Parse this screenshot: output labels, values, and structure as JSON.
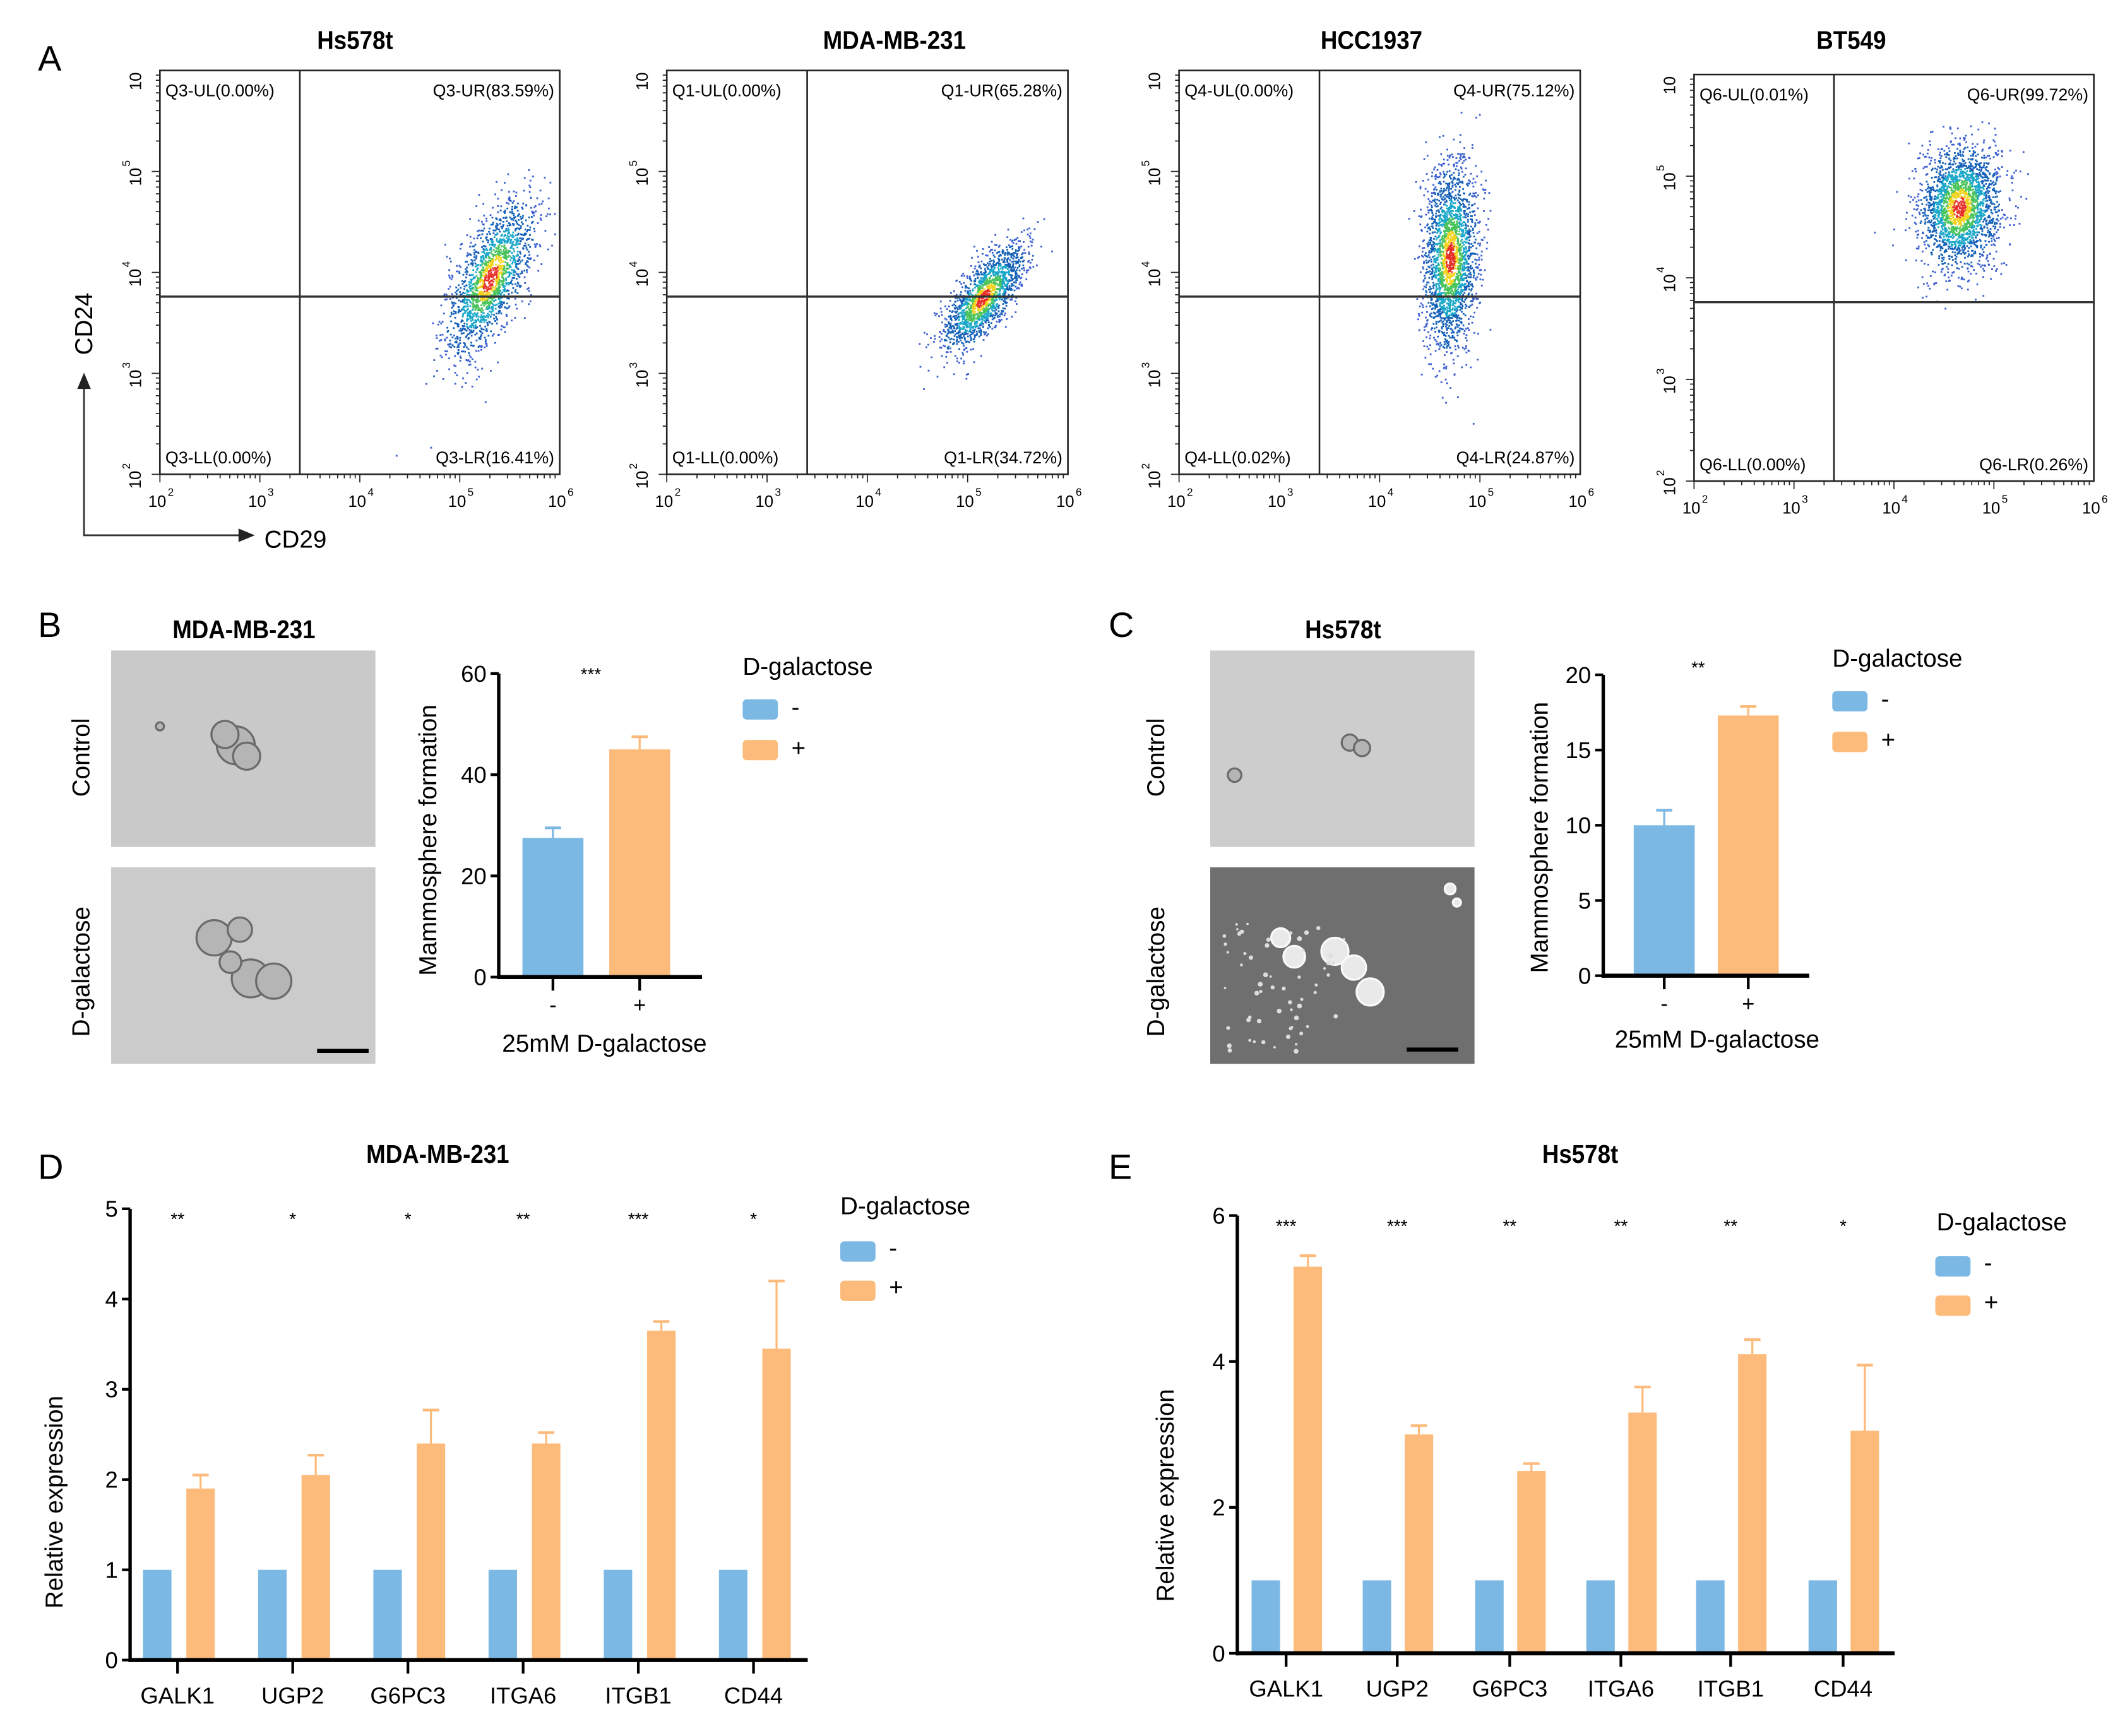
{
  "colors": {
    "minus": "#7cb8e4",
    "plus": "#fdbb7b",
    "axis": "#000000"
  },
  "panelA": {
    "label": "A",
    "y_axis_label": "CD24",
    "x_axis_label": "CD29",
    "tick_labels": [
      "10",
      "2",
      "10",
      "3",
      "10",
      "4",
      "10",
      "5",
      "10",
      "6"
    ]
  },
  "chart_data": [
    {
      "type": "scatter",
      "panel": "A",
      "title": "Hs578t",
      "xlabel": "CD29",
      "ylabel": "CD24",
      "xscale": "log",
      "yscale": "log",
      "xlim": [
        100,
        1000000
      ],
      "ylim": [
        100,
        1000000
      ],
      "quadrants": {
        "UL": "Q3-UL(0.00%)",
        "UR": "Q3-UR(83.59%)",
        "LL": "Q3-LL(0.00%)",
        "LR": "Q3-LR(16.41%)"
      }
    },
    {
      "type": "scatter",
      "panel": "A",
      "title": "MDA-MB-231",
      "xlabel": "CD29",
      "ylabel": "CD24",
      "xscale": "log",
      "yscale": "log",
      "xlim": [
        100,
        1000000
      ],
      "ylim": [
        100,
        1000000
      ],
      "quadrants": {
        "UL": "Q1-UL(0.00%)",
        "UR": "Q1-UR(65.28%)",
        "LL": "Q1-LL(0.00%)",
        "LR": "Q1-LR(34.72%)"
      }
    },
    {
      "type": "scatter",
      "panel": "A",
      "title": "HCC1937",
      "xlabel": "CD29",
      "ylabel": "CD24",
      "xscale": "log",
      "yscale": "log",
      "xlim": [
        100,
        1000000
      ],
      "ylim": [
        100,
        1000000
      ],
      "quadrants": {
        "UL": "Q4-UL(0.00%)",
        "UR": "Q4-UR(75.12%)",
        "LL": "Q4-LL(0.02%)",
        "LR": "Q4-LR(24.87%)"
      }
    },
    {
      "type": "scatter",
      "panel": "A",
      "title": "BT549",
      "xlabel": "CD29",
      "ylabel": "CD24",
      "xscale": "log",
      "yscale": "log",
      "xlim": [
        100,
        1000000
      ],
      "ylim": [
        100,
        1000000
      ],
      "quadrants": {
        "UL": "Q6-UL(0.01%)",
        "UR": "Q6-UR(99.72%)",
        "LL": "Q6-LL(0.00%)",
        "LR": "Q6-LR(0.26%)"
      }
    },
    {
      "type": "bar",
      "panel": "B",
      "title": "MDA-MB-231",
      "ylabel": "Mammosphere formation",
      "xlabel": "25mM D-galactose",
      "categories": [
        "-",
        "+"
      ],
      "values": [
        27.5,
        45
      ],
      "errors": [
        2,
        2.5
      ],
      "ylim": [
        0,
        60
      ],
      "yticks": [
        0,
        20,
        40,
        60
      ],
      "significance": "***",
      "legend": {
        "title": "D-galactose",
        "entries": [
          "-",
          "+"
        ]
      }
    },
    {
      "type": "bar",
      "panel": "C",
      "title": "Hs578t",
      "ylabel": "Mammosphere formation",
      "xlabel": "25mM D-galactose",
      "categories": [
        "-",
        "+"
      ],
      "values": [
        10,
        17.3
      ],
      "errors": [
        1,
        0.6
      ],
      "ylim": [
        0,
        20
      ],
      "yticks": [
        0,
        5,
        10,
        15,
        20
      ],
      "significance": "**",
      "legend": {
        "title": "D-galactose",
        "entries": [
          "-",
          "+"
        ]
      }
    },
    {
      "type": "bar",
      "panel": "D",
      "title": "MDA-MB-231",
      "ylabel": "Relative expression",
      "xlabel": "",
      "categories": [
        "GALK1",
        "UGP2",
        "G6PC3",
        "ITGA6",
        "ITGB1",
        "CD44"
      ],
      "series": [
        {
          "name": "-",
          "values": [
            1,
            1,
            1,
            1,
            1,
            1
          ]
        },
        {
          "name": "+",
          "values": [
            1.9,
            2.05,
            2.4,
            2.4,
            3.65,
            3.45
          ],
          "errors": [
            0.15,
            0.22,
            0.37,
            0.12,
            0.1,
            0.75
          ]
        }
      ],
      "ylim": [
        0,
        5
      ],
      "yticks": [
        0,
        1,
        2,
        3,
        4,
        5
      ],
      "significance": [
        "**",
        "*",
        "*",
        "**",
        "***",
        "*"
      ],
      "legend": {
        "title": "D-galactose",
        "entries": [
          "-",
          "+"
        ]
      }
    },
    {
      "type": "bar",
      "panel": "E",
      "title": "Hs578t",
      "ylabel": "Relative expression",
      "xlabel": "",
      "categories": [
        "GALK1",
        "UGP2",
        "G6PC3",
        "ITGA6",
        "ITGB1",
        "CD44"
      ],
      "series": [
        {
          "name": "-",
          "values": [
            1,
            1,
            1,
            1,
            1,
            1
          ]
        },
        {
          "name": "+",
          "values": [
            5.3,
            3.0,
            2.5,
            3.3,
            4.1,
            3.05
          ],
          "errors": [
            0.15,
            0.12,
            0.1,
            0.35,
            0.2,
            0.9
          ]
        }
      ],
      "ylim": [
        0,
        6
      ],
      "yticks": [
        0,
        2,
        4,
        6
      ],
      "significance": [
        "***",
        "***",
        "**",
        "**",
        "**",
        "*"
      ],
      "legend": {
        "title": "D-galactose",
        "entries": [
          "-",
          "+"
        ]
      }
    }
  ],
  "panelB": {
    "label": "B",
    "row_labels": [
      "Control",
      "D-galactose"
    ]
  },
  "panelC": {
    "label": "C",
    "row_labels": [
      "Control",
      "D-galactose"
    ]
  },
  "panelD": {
    "label": "D"
  },
  "panelE": {
    "label": "E"
  }
}
